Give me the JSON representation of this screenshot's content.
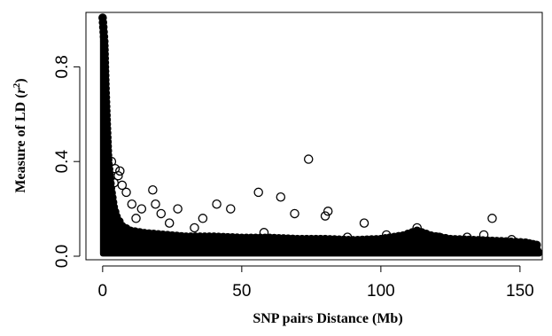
{
  "chart_data": {
    "type": "scatter",
    "xlabel": "SNP pairs Distance (Mb)",
    "ylabel_main": "Measure of LD (",
    "ylabel_var": "r",
    "ylabel_sup": "2",
    "ylabel_close": ")",
    "xlim": [
      -6,
      158
    ],
    "ylim": [
      -0.015,
      1.03
    ],
    "x_ticks": [
      0,
      50,
      100,
      150
    ],
    "x_tick_labels": [
      "0",
      "50",
      "100",
      "150"
    ],
    "y_ticks": [
      0.0,
      0.4,
      0.8
    ],
    "y_tick_labels": [
      "0.0",
      "0.4",
      "0.8"
    ],
    "grid": false,
    "marker": "open-circle",
    "color": "#000000",
    "outlier_points": [
      {
        "x": 1.3,
        "y": 0.52
      },
      {
        "x": 3.2,
        "y": 0.4
      },
      {
        "x": 4.5,
        "y": 0.37
      },
      {
        "x": 6.2,
        "y": 0.36
      },
      {
        "x": 5.6,
        "y": 0.34
      },
      {
        "x": 4.1,
        "y": 0.31
      },
      {
        "x": 7.0,
        "y": 0.3
      },
      {
        "x": 8.5,
        "y": 0.27
      },
      {
        "x": 10.5,
        "y": 0.22
      },
      {
        "x": 14.0,
        "y": 0.2
      },
      {
        "x": 18.0,
        "y": 0.28
      },
      {
        "x": 19.0,
        "y": 0.22
      },
      {
        "x": 21.0,
        "y": 0.18
      },
      {
        "x": 27.0,
        "y": 0.2
      },
      {
        "x": 36.0,
        "y": 0.16
      },
      {
        "x": 41.0,
        "y": 0.22
      },
      {
        "x": 46.0,
        "y": 0.2
      },
      {
        "x": 56.0,
        "y": 0.27
      },
      {
        "x": 64.0,
        "y": 0.25
      },
      {
        "x": 69.0,
        "y": 0.18
      },
      {
        "x": 74.0,
        "y": 0.41
      },
      {
        "x": 81.0,
        "y": 0.19
      },
      {
        "x": 80.0,
        "y": 0.17
      },
      {
        "x": 94.0,
        "y": 0.14
      },
      {
        "x": 113.0,
        "y": 0.12
      },
      {
        "x": 140.0,
        "y": 0.16
      },
      {
        "x": 137.0,
        "y": 0.09
      },
      {
        "x": 131.0,
        "y": 0.08
      },
      {
        "x": 58.0,
        "y": 0.1
      },
      {
        "x": 33.0,
        "y": 0.12
      },
      {
        "x": 12.0,
        "y": 0.16
      },
      {
        "x": 24.0,
        "y": 0.14
      },
      {
        "x": 88.0,
        "y": 0.08
      },
      {
        "x": 102.0,
        "y": 0.09
      },
      {
        "x": 121.0,
        "y": 0.08
      },
      {
        "x": 147.0,
        "y": 0.07
      }
    ],
    "envelope": [
      [
        0.0,
        1.0
      ],
      [
        0.6,
        0.9
      ],
      [
        1.0,
        0.72
      ],
      [
        1.5,
        0.55
      ],
      [
        2.0,
        0.4
      ],
      [
        3.0,
        0.28
      ],
      [
        4.0,
        0.2
      ],
      [
        5.0,
        0.16
      ],
      [
        7.0,
        0.12
      ],
      [
        10.0,
        0.1
      ],
      [
        15.0,
        0.09
      ],
      [
        20.0,
        0.085
      ],
      [
        30.0,
        0.075
      ],
      [
        40.0,
        0.075
      ],
      [
        50.0,
        0.07
      ],
      [
        60.0,
        0.07
      ],
      [
        70.0,
        0.065
      ],
      [
        80.0,
        0.065
      ],
      [
        90.0,
        0.06
      ],
      [
        100.0,
        0.065
      ],
      [
        108.0,
        0.08
      ],
      [
        113.0,
        0.1
      ],
      [
        118.0,
        0.08
      ],
      [
        125.0,
        0.065
      ],
      [
        135.0,
        0.06
      ],
      [
        145.0,
        0.055
      ],
      [
        152.0,
        0.05
      ],
      [
        156.0,
        0.04
      ],
      [
        157.0,
        0.02
      ]
    ]
  }
}
